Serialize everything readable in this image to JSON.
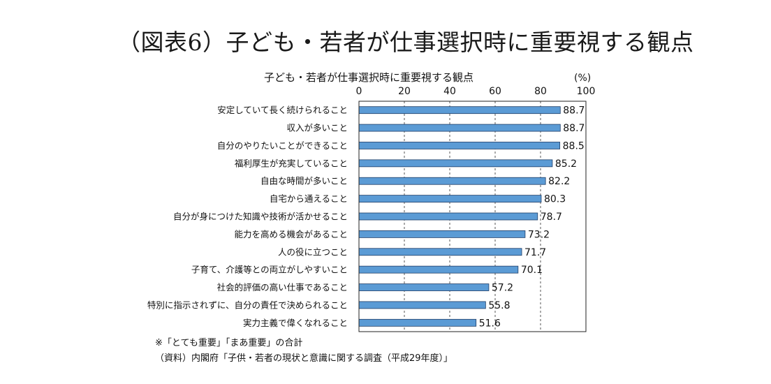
{
  "page_title": "（図表6）子ども・若者が仕事選択時に重要視する観点",
  "chart_data": {
    "type": "bar",
    "orientation": "horizontal",
    "title": "子ども・若者が仕事選択時に重要視する観点",
    "unit_label": "(%)",
    "xlim": [
      0,
      100
    ],
    "x_ticks": [
      0,
      20,
      40,
      60,
      80,
      100
    ],
    "grid": "vertical-dashed",
    "categories": [
      "安定していて長く続けられること",
      "収入が多いこと",
      "自分のやりたいことができること",
      "福利厚生が充実していること",
      "自由な時間が多いこと",
      "自宅から通えること",
      "自分が身につけた知識や技術が活かせること",
      "能力を高める機会があること",
      "人の役に立つこと",
      "子育て、介護等との両立がしやすいこと",
      "社会的評価の高い仕事であること",
      "特別に指示されずに、自分の責任で決められること",
      "実力主義で偉くなれること"
    ],
    "values": [
      88.7,
      88.7,
      88.5,
      85.2,
      82.2,
      80.3,
      78.7,
      73.2,
      71.7,
      70.1,
      57.2,
      55.8,
      51.6
    ],
    "value_labels": [
      "88.7",
      "88.7",
      "88.5",
      "85.2",
      "82.2",
      "80.3",
      "78.7",
      "73.2",
      "71.7",
      "70.1",
      "57.2",
      "55.8",
      "51.6"
    ],
    "bar_color": "#5b9bd5",
    "bar_border_color": "#1f3d66"
  },
  "footnotes": {
    "note": "※「とても重要」「まあ重要」の合計",
    "source": "（資料）内閣府「子供・若者の現状と意識に関する調査（平成29年度）」"
  }
}
